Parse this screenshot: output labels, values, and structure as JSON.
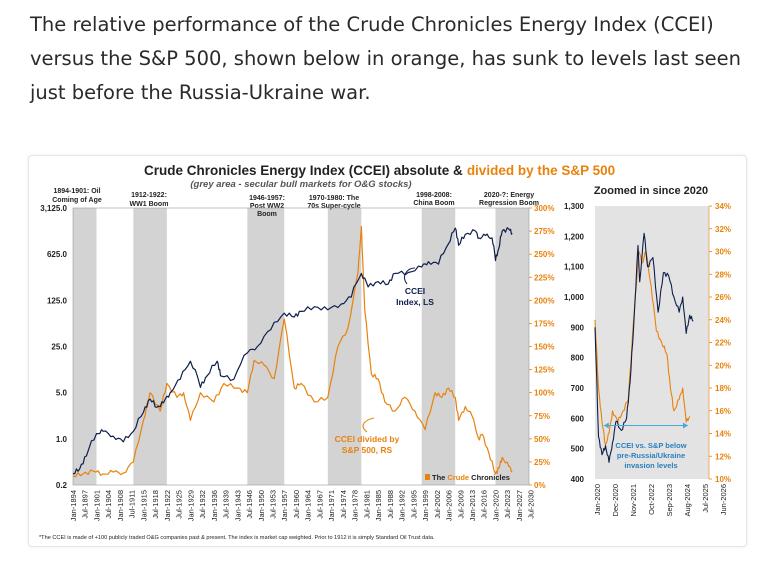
{
  "article": {
    "intro_text": "The relative performance of the Crude Chronicles Energy Index (CCEI) versus the S&P 500, shown below in orange, has sunk to levels last seen just before the Russia-Ukraine war."
  },
  "colors": {
    "navy": "#0d1f4a",
    "orange": "#e8820c",
    "grey_band": "#d3d3d3",
    "arrow": "#4aa8d8"
  },
  "chart_data": [
    {
      "type": "line",
      "title": "Crude Chronicles Energy Index (CCEI) absolute &",
      "title_highlight": "divided by the S&P 500",
      "subtitle": "(grey area - secular bull markets for O&G stocks)",
      "x_range": [
        1894,
        2030
      ],
      "left_axis": {
        "scale": "log",
        "range": [
          0.2,
          3125
        ],
        "ticks": [
          {
            "v": 3125,
            "label": "3,125.0"
          },
          {
            "v": 625,
            "label": "625.0"
          },
          {
            "v": 125,
            "label": "125.0"
          },
          {
            "v": 25,
            "label": "25.0"
          },
          {
            "v": 5,
            "label": "5.0"
          },
          {
            "v": 1,
            "label": "1.0"
          },
          {
            "v": 0.2,
            "label": "0.2"
          }
        ]
      },
      "right_axis": {
        "scale": "linear",
        "range": [
          0,
          300
        ],
        "ticks": [
          "0%",
          "25%",
          "50%",
          "75%",
          "100%",
          "125%",
          "150%",
          "175%",
          "200%",
          "225%",
          "250%",
          "275%",
          "300%"
        ]
      },
      "x_tick_labels": [
        "Jan-1894",
        "Jul-1897",
        "Jan-1901",
        "Jul-1904",
        "Jan-1908",
        "Jul-1911",
        "Jan-1915",
        "Jul-1918",
        "Jan-1922",
        "Jul-1925",
        "Jan-1929",
        "Jul-1932",
        "Jan-1936",
        "Jul-1939",
        "Jan-1943",
        "Jul-1946",
        "Jan-1950",
        "Jul-1953",
        "Jan-1957",
        "Jul-1960",
        "Jan-1964",
        "Jul-1967",
        "Jan-1971",
        "Jul-1974",
        "Jan-1978",
        "Jul-1981",
        "Jan-1985",
        "Jul-1988",
        "Jan-1992",
        "Jul-1995",
        "Jan-1999",
        "Jul-2002",
        "Jan-2006",
        "Jul-2009",
        "Jan-2013",
        "Jul-2016",
        "Jan-2020",
        "Jul-2023",
        "Jan-2027",
        "Jul-2030"
      ],
      "bull_markets": [
        {
          "start": 1894,
          "end": 1901,
          "label": "1894-1901: Oil Coming of Age"
        },
        {
          "start": 1912,
          "end": 1922,
          "label": "1912-1922: WW1 Boom"
        },
        {
          "start": 1946,
          "end": 1957,
          "label": "1946-1957: Post WW2 Boom"
        },
        {
          "start": 1970,
          "end": 1980,
          "label": "1970-1980: The 70s Super-cycle"
        },
        {
          "start": 1998,
          "end": 2008,
          "label": "1998-2008: China Boom"
        },
        {
          "start": 2020,
          "end": 2030,
          "label": "2020-?: Energy Regression Boom"
        }
      ],
      "series": [
        {
          "name": "CCEI, Index, LS",
          "axis": "left",
          "color": "#0d1f4a",
          "points": [
            [
              1894,
              0.3
            ],
            [
              1896,
              0.35
            ],
            [
              1898,
              0.55
            ],
            [
              1901,
              1.2
            ],
            [
              1903,
              1.3
            ],
            [
              1906,
              1.1
            ],
            [
              1909,
              0.9
            ],
            [
              1912,
              1.3
            ],
            [
              1915,
              2.5
            ],
            [
              1917,
              4
            ],
            [
              1919,
              3
            ],
            [
              1921,
              3.5
            ],
            [
              1923,
              5
            ],
            [
              1926,
              8
            ],
            [
              1929,
              15
            ],
            [
              1932,
              6
            ],
            [
              1934,
              9
            ],
            [
              1937,
              15
            ],
            [
              1938,
              9
            ],
            [
              1942,
              8
            ],
            [
              1946,
              20
            ],
            [
              1949,
              25
            ],
            [
              1953,
              45
            ],
            [
              1957,
              80
            ],
            [
              1960,
              70
            ],
            [
              1962,
              85
            ],
            [
              1966,
              100
            ],
            [
              1970,
              90
            ],
            [
              1974,
              110
            ],
            [
              1977,
              140
            ],
            [
              1980,
              320
            ],
            [
              1982,
              200
            ],
            [
              1985,
              240
            ],
            [
              1988,
              220
            ],
            [
              1990,
              320
            ],
            [
              1994,
              330
            ],
            [
              1998,
              400
            ],
            [
              2000,
              480
            ],
            [
              2003,
              440
            ],
            [
              2006,
              900
            ],
            [
              2008,
              1550
            ],
            [
              2009,
              850
            ],
            [
              2011,
              1250
            ],
            [
              2014,
              1400
            ],
            [
              2015,
              1100
            ],
            [
              2017,
              1200
            ],
            [
              2019,
              1100
            ],
            [
              2020,
              500
            ],
            [
              2021,
              760
            ],
            [
              2022,
              1400
            ],
            [
              2024,
              1500
            ],
            [
              2025,
              1300
            ]
          ]
        },
        {
          "name": "CCEI divided by S&P 500, RS",
          "axis": "right",
          "color": "#e8820c",
          "points": [
            [
              1894,
              10
            ],
            [
              1897,
              12
            ],
            [
              1900,
              15
            ],
            [
              1903,
              12
            ],
            [
              1906,
              14
            ],
            [
              1909,
              13
            ],
            [
              1912,
              25
            ],
            [
              1915,
              70
            ],
            [
              1917,
              100
            ],
            [
              1920,
              80
            ],
            [
              1922,
              110
            ],
            [
              1925,
              95
            ],
            [
              1927,
              100
            ],
            [
              1929,
              70
            ],
            [
              1932,
              100
            ],
            [
              1936,
              90
            ],
            [
              1939,
              110
            ],
            [
              1943,
              105
            ],
            [
              1946,
              100
            ],
            [
              1948,
              135
            ],
            [
              1951,
              130
            ],
            [
              1954,
              115
            ],
            [
              1957,
              180
            ],
            [
              1960,
              105
            ],
            [
              1962,
              110
            ],
            [
              1966,
              90
            ],
            [
              1970,
              95
            ],
            [
              1973,
              150
            ],
            [
              1976,
              170
            ],
            [
              1979,
              230
            ],
            [
              1980,
              280
            ],
            [
              1981,
              190
            ],
            [
              1983,
              120
            ],
            [
              1985,
              115
            ],
            [
              1987,
              90
            ],
            [
              1990,
              80
            ],
            [
              1993,
              95
            ],
            [
              1996,
              80
            ],
            [
              1999,
              60
            ],
            [
              2002,
              100
            ],
            [
              2004,
              95
            ],
            [
              2006,
              105
            ],
            [
              2008,
              95
            ],
            [
              2009,
              70
            ],
            [
              2011,
              85
            ],
            [
              2013,
              75
            ],
            [
              2015,
              50
            ],
            [
              2016,
              55
            ],
            [
              2018,
              35
            ],
            [
              2020,
              12
            ],
            [
              2021,
              18
            ],
            [
              2022,
              30
            ],
            [
              2024,
              20
            ],
            [
              2025,
              15
            ]
          ]
        }
      ],
      "annotations": [
        {
          "text": "CCEI Index, LS"
        },
        {
          "text": "CCEI divided by S&P 500, RS"
        },
        {
          "text": "The Crude Chronicles"
        }
      ]
    },
    {
      "type": "line",
      "title": "Zoomed in since 2020",
      "x_range": [
        2020.0,
        2026.5
      ],
      "left_axis": {
        "range": [
          400,
          1300
        ],
        "ticks": [
          "400",
          "500",
          "600",
          "700",
          "800",
          "900",
          "1,000",
          "1,100",
          "1,200",
          "1,300"
        ]
      },
      "right_axis": {
        "range": [
          10,
          34
        ],
        "ticks": [
          "10%",
          "12%",
          "14%",
          "16%",
          "18%",
          "20%",
          "22%",
          "24%",
          "26%",
          "28%",
          "30%",
          "32%",
          "34%"
        ]
      },
      "x_tick_labels": [
        "Jan-2020",
        "Dec-2020",
        "Nov-2021",
        "Oct-2022",
        "Sep-2023",
        "Aug-2024",
        "Jul-2025",
        "Jun-2026"
      ],
      "series": [
        {
          "name": "CCEI",
          "axis": "left",
          "color": "#0d1f4a",
          "points": [
            [
              2020.0,
              900
            ],
            [
              2020.2,
              540
            ],
            [
              2020.4,
              480
            ],
            [
              2020.6,
              510
            ],
            [
              2020.8,
              455
            ],
            [
              2021.0,
              520
            ],
            [
              2021.2,
              590
            ],
            [
              2021.5,
              560
            ],
            [
              2021.8,
              600
            ],
            [
              2022.0,
              720
            ],
            [
              2022.2,
              900
            ],
            [
              2022.45,
              1170
            ],
            [
              2022.55,
              1050
            ],
            [
              2022.8,
              1210
            ],
            [
              2023.0,
              1100
            ],
            [
              2023.3,
              1130
            ],
            [
              2023.6,
              950
            ],
            [
              2023.9,
              1080
            ],
            [
              2024.2,
              1070
            ],
            [
              2024.5,
              1000
            ],
            [
              2024.8,
              950
            ],
            [
              2025.0,
              1000
            ],
            [
              2025.2,
              880
            ],
            [
              2025.4,
              940
            ],
            [
              2025.6,
              920
            ]
          ]
        },
        {
          "name": "CCEI / S&P 500",
          "axis": "right",
          "color": "#e8820c",
          "points": [
            [
              2020.0,
              24
            ],
            [
              2020.2,
              18
            ],
            [
              2020.4,
              15
            ],
            [
              2020.6,
              13
            ],
            [
              2020.8,
              14
            ],
            [
              2021.0,
              16
            ],
            [
              2021.3,
              15
            ],
            [
              2021.6,
              16
            ],
            [
              2021.9,
              17
            ],
            [
              2022.2,
              24
            ],
            [
              2022.4,
              28
            ],
            [
              2022.5,
              30
            ],
            [
              2022.7,
              29
            ],
            [
              2022.9,
              30
            ],
            [
              2023.2,
              27
            ],
            [
              2023.5,
              23
            ],
            [
              2023.8,
              22
            ],
            [
              2024.1,
              21
            ],
            [
              2024.3,
              18
            ],
            [
              2024.5,
              16
            ],
            [
              2024.8,
              17
            ],
            [
              2025.0,
              18
            ],
            [
              2025.2,
              15
            ],
            [
              2025.4,
              15.5
            ]
          ]
        }
      ],
      "annotations": [
        {
          "text": "CCEI vs. S&P below pre-Russia/Ukraine invasion levels"
        }
      ]
    }
  ],
  "footnote": "*The CCEI is made of +100 publicly traded O&G companies past & present. The index is market cap weighted. Prior to 1912 it is simply Standard Oil Trust data."
}
